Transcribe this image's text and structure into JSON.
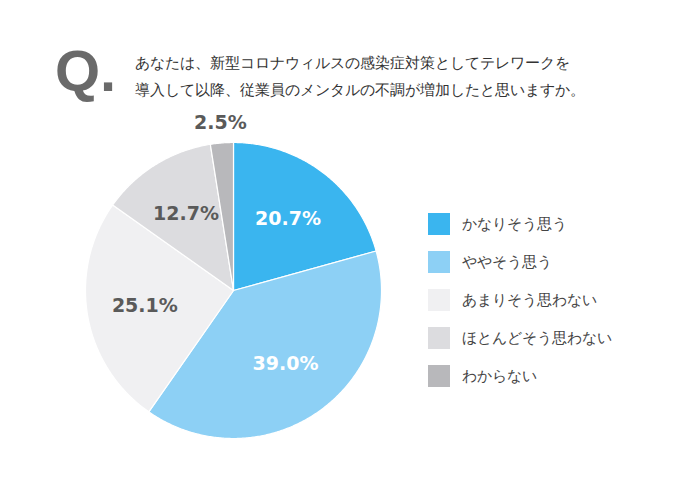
{
  "chart_data": {
    "type": "pie",
    "title": "Q.",
    "subtitle": "あなたは、新型コロナウィルスの感染症対策としてテレワークを\n導入して以降、従業員のメンタルの不調が増加したと思いますか。",
    "categories": [
      "かなりそう思う",
      "ややそう思う",
      "あまりそう思わない",
      "ほとんどそう思わない",
      "わからない"
    ],
    "values": [
      20.7,
      39.0,
      25.1,
      12.7,
      2.5
    ],
    "value_labels": [
      "20.7%",
      "39.0%",
      "25.1%",
      "12.7%",
      "2.5%"
    ],
    "colors": [
      "#3ab5ef",
      "#8dd0f5",
      "#f0f0f2",
      "#dcdcdf",
      "#b8b8bb"
    ],
    "data_labels": true,
    "legend": "right"
  }
}
